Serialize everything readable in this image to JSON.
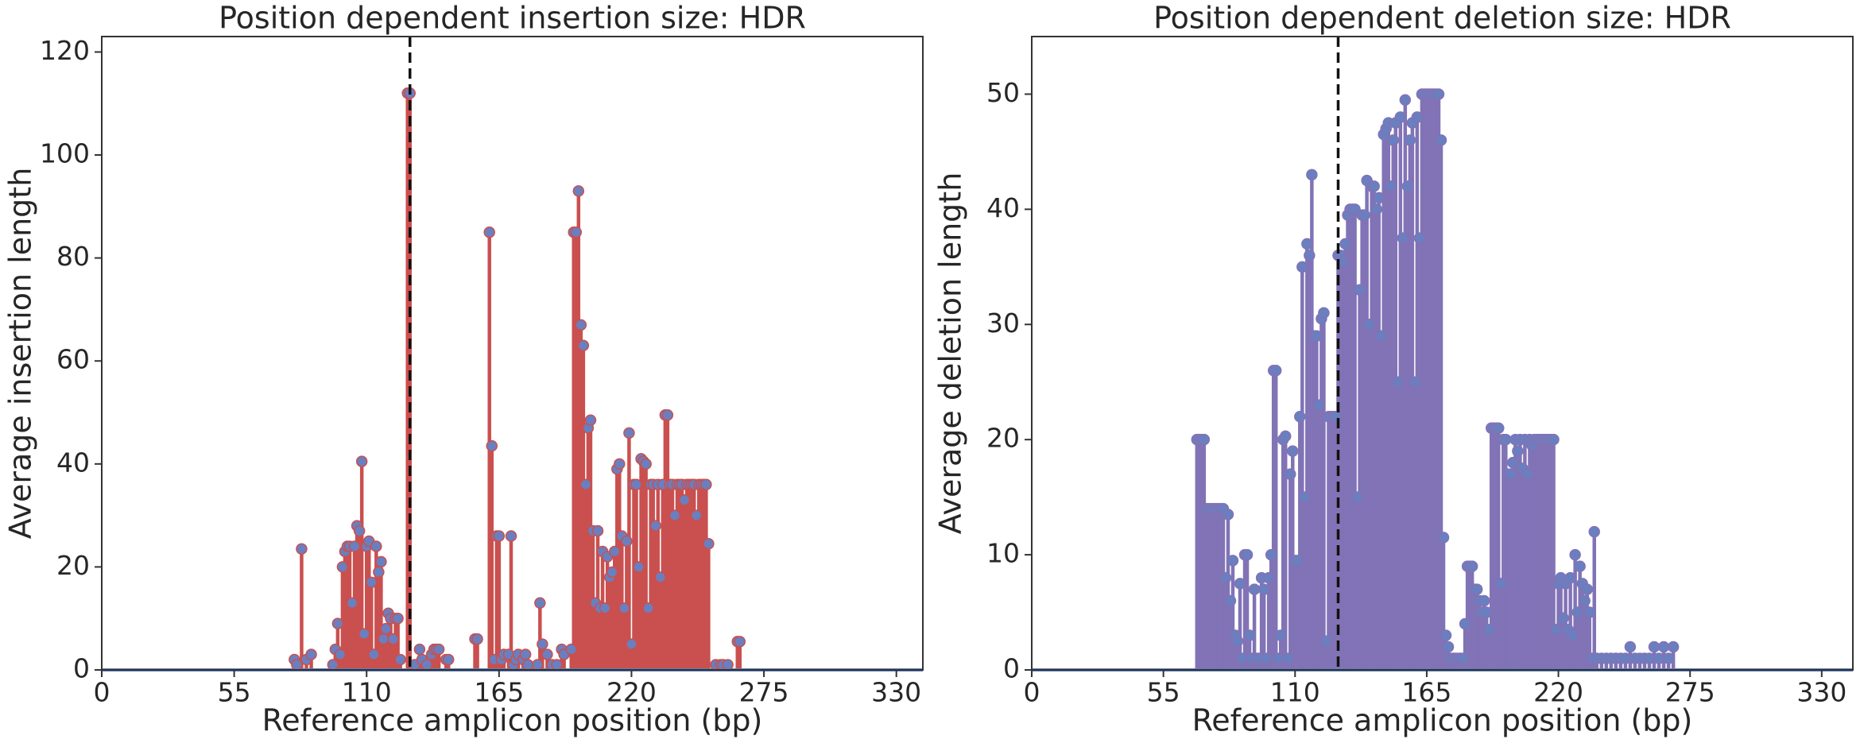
{
  "chart_data": [
    {
      "type": "stem",
      "title": "Position dependent insertion size: HDR",
      "x_label": "Reference amplicon position (bp)",
      "y_label": "Average insertion length",
      "stem_color": "#c9504f",
      "marker_color": "#6a7fc0",
      "baseline_color": "#5b7fbf",
      "vline_x": 128,
      "xlim": [
        0,
        341
      ],
      "xticks": [
        0,
        55,
        110,
        165,
        220,
        275,
        330
      ],
      "ylim": [
        0,
        123
      ],
      "yticks": [
        0,
        20,
        40,
        60,
        80,
        100,
        120
      ],
      "x": [
        80,
        81,
        83,
        85,
        87,
        96,
        97,
        98,
        99,
        100,
        101,
        102,
        103,
        104,
        105,
        106,
        107,
        108,
        109,
        110,
        111,
        112,
        113,
        114,
        115,
        116,
        117,
        118,
        119,
        120,
        121,
        122,
        123,
        124,
        127,
        128,
        130,
        132,
        133,
        135,
        137,
        138,
        139,
        140,
        143,
        144,
        155,
        156,
        161,
        162,
        163,
        164,
        165,
        166,
        167,
        169,
        170,
        171,
        172,
        173,
        175,
        176,
        177,
        181,
        182,
        183,
        185,
        187,
        189,
        191,
        192,
        195,
        196,
        197,
        198,
        199,
        200,
        201,
        202,
        203,
        204,
        205,
        206,
        207,
        208,
        209,
        210,
        211,
        212,
        213,
        214,
        215,
        216,
        217,
        218,
        219,
        220,
        221,
        222,
        223,
        224,
        225,
        226,
        227,
        228,
        229,
        230,
        231,
        232,
        233,
        234,
        235,
        236,
        237,
        238,
        239,
        240,
        241,
        242,
        243,
        244,
        245,
        246,
        247,
        248,
        249,
        250,
        251,
        252,
        255,
        257,
        258,
        260,
        264,
        265
      ],
      "values": [
        2,
        1,
        23.5,
        2,
        3,
        1,
        4,
        9,
        3,
        20,
        23,
        24,
        24,
        13,
        24,
        28,
        27,
        40.5,
        7,
        24,
        25,
        17,
        3,
        24,
        19,
        21,
        6,
        8,
        11,
        10,
        6,
        10,
        10,
        2,
        112,
        112,
        1,
        4,
        2,
        1,
        3,
        4,
        4,
        4,
        2,
        2,
        6,
        6,
        85,
        43.5,
        2,
        26,
        26,
        2,
        3,
        3,
        26,
        1,
        2,
        3,
        2,
        3,
        1,
        1,
        13,
        5,
        3,
        1,
        1,
        4,
        3,
        4,
        85,
        85,
        93,
        67,
        63,
        36,
        47,
        48.5,
        27,
        13,
        27,
        12,
        23,
        12,
        22,
        18,
        19,
        23,
        39,
        40,
        26,
        12,
        25,
        46,
        5,
        36,
        36,
        20,
        41,
        40.5,
        40,
        12,
        36,
        36,
        28,
        36,
        18,
        36,
        49.5,
        49.5,
        36,
        36,
        30,
        36,
        36,
        36,
        33,
        36,
        36,
        36,
        36,
        30,
        36,
        36,
        36,
        36,
        24.5,
        1,
        1,
        1,
        1,
        5.5,
        5.5
      ]
    },
    {
      "type": "stem",
      "title": "Position dependent deletion size: HDR",
      "x_label": "Reference amplicon position (bp)",
      "y_label": "Average deletion length",
      "stem_color": "#8173b6",
      "marker_color": "#6a7fc0",
      "baseline_color": "#5b7fbf",
      "vline_x": 128,
      "xlim": [
        0,
        343
      ],
      "xticks": [
        0,
        55,
        110,
        165,
        220,
        275,
        330
      ],
      "ylim": [
        0,
        55
      ],
      "yticks": [
        0,
        10,
        20,
        30,
        40,
        50
      ],
      "x": [
        69,
        70,
        71,
        72,
        73,
        74,
        75,
        76,
        77,
        78,
        79,
        80,
        81,
        82,
        83,
        84,
        85,
        86,
        87,
        88,
        89,
        90,
        91,
        92,
        93,
        94,
        95,
        96,
        97,
        98,
        99,
        100,
        101,
        102,
        103,
        104,
        105,
        106,
        107,
        108,
        109,
        110,
        111,
        112,
        113,
        114,
        115,
        116,
        117,
        118,
        119,
        120,
        121,
        122,
        123,
        124,
        125,
        126,
        127,
        128,
        129,
        130,
        131,
        132,
        133,
        134,
        135,
        136,
        137,
        138,
        139,
        140,
        141,
        142,
        143,
        144,
        145,
        146,
        147,
        148,
        149,
        150,
        151,
        152,
        153,
        154,
        155,
        156,
        157,
        158,
        159,
        160,
        161,
        162,
        163,
        164,
        165,
        166,
        167,
        168,
        169,
        170,
        171,
        172,
        173,
        174,
        175,
        176,
        177,
        178,
        179,
        180,
        181,
        182,
        183,
        184,
        185,
        186,
        187,
        188,
        189,
        190,
        191,
        192,
        193,
        194,
        195,
        196,
        197,
        198,
        199,
        200,
        201,
        202,
        203,
        204,
        205,
        206,
        207,
        208,
        209,
        210,
        211,
        212,
        213,
        214,
        215,
        216,
        217,
        218,
        219,
        220,
        221,
        222,
        223,
        224,
        225,
        226,
        227,
        228,
        229,
        230,
        231,
        232,
        233,
        234,
        235,
        236,
        238,
        240,
        242,
        244,
        246,
        248,
        250,
        252,
        254,
        256,
        258,
        260,
        262,
        264,
        266,
        268
      ],
      "values": [
        20,
        20,
        20,
        20,
        14,
        14,
        14,
        14,
        14,
        14,
        14,
        14,
        8,
        13.5,
        6,
        9.5,
        3,
        2.5,
        7.5,
        1,
        10,
        10,
        3,
        1,
        7,
        1,
        1,
        8,
        7,
        1,
        8,
        10,
        26,
        26,
        1,
        3,
        20,
        20.3,
        1,
        17,
        19,
        9.5,
        9.5,
        22,
        35,
        15,
        37,
        36,
        43,
        29,
        29,
        23,
        30.5,
        31,
        2.5,
        22,
        22,
        22,
        22,
        36,
        36,
        35.5,
        37,
        39.5,
        40,
        40,
        40,
        15,
        33,
        39.5,
        39.5,
        42.5,
        30,
        42,
        42,
        40,
        41,
        29,
        46.5,
        47,
        47.5,
        42,
        46,
        47.5,
        25,
        48,
        37.5,
        49.5,
        42,
        46,
        47.5,
        25,
        48,
        37.5,
        50,
        50,
        50,
        50,
        50,
        50,
        50,
        50,
        46,
        11.5,
        3,
        2,
        1,
        1,
        1,
        1,
        1,
        1,
        4,
        9,
        9,
        9,
        7,
        7,
        6,
        5,
        6,
        5,
        3.5,
        21,
        21,
        21,
        21,
        7.5,
        20,
        20,
        17,
        17,
        18,
        20,
        19,
        20,
        17.5,
        20,
        17,
        20,
        19.5,
        20,
        20,
        20,
        20,
        20,
        20,
        20,
        20,
        20,
        3.5,
        7.5,
        8,
        4.5,
        7.5,
        3.5,
        8,
        3,
        10,
        5,
        9,
        7.5,
        6,
        7,
        5,
        1,
        12,
        1,
        1,
        1,
        1,
        1,
        1,
        1,
        2,
        1,
        1,
        1,
        1,
        2,
        1,
        2,
        1,
        2
      ]
    }
  ]
}
